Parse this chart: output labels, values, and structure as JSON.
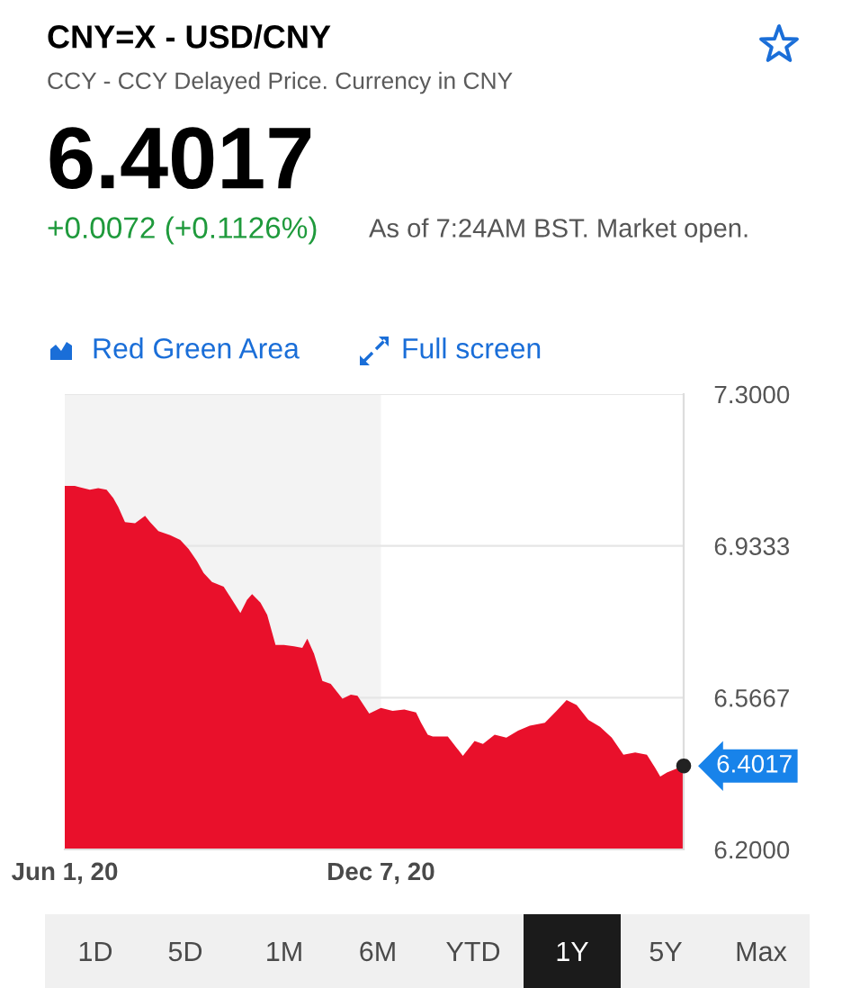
{
  "chart_data": {
    "type": "area",
    "title": "CNY=X - USD/CNY",
    "subtitle": "CCY - CCY Delayed Price. Currency in CNY",
    "x": [
      "2020-06-01",
      "2020-06-07",
      "2020-06-10",
      "2020-06-16",
      "2020-06-21",
      "2020-06-26",
      "2020-06-30",
      "2020-07-03",
      "2020-07-07",
      "2020-07-13",
      "2020-07-19",
      "2020-07-22",
      "2020-07-27",
      "2020-08-03",
      "2020-08-09",
      "2020-08-14",
      "2020-08-19",
      "2020-08-23",
      "2020-08-28",
      "2020-09-04",
      "2020-09-09",
      "2020-09-14",
      "2020-09-18",
      "2020-09-21",
      "2020-09-26",
      "2020-09-30",
      "2020-10-05",
      "2020-10-10",
      "2020-10-16",
      "2020-10-21",
      "2020-10-24",
      "2020-10-28",
      "2020-11-02",
      "2020-11-07",
      "2020-11-14",
      "2020-11-19",
      "2020-11-23",
      "2020-11-30",
      "2020-12-07",
      "2020-12-14",
      "2020-12-21",
      "2020-12-28",
      "2020-12-31",
      "2021-01-04",
      "2021-01-07",
      "2021-01-16",
      "2021-01-25",
      "2021-02-01",
      "2021-02-06",
      "2021-02-13",
      "2021-02-20",
      "2021-02-27",
      "2021-03-06",
      "2021-03-15",
      "2021-03-22",
      "2021-03-28",
      "2021-04-03",
      "2021-04-10",
      "2021-04-17",
      "2021-04-24",
      "2021-05-01",
      "2021-05-08",
      "2021-05-15",
      "2021-05-20",
      "2021-05-23",
      "2021-05-27",
      "2021-06-01",
      "2021-06-06"
    ],
    "values": [
      7.078,
      7.078,
      7.075,
      7.069,
      7.073,
      7.069,
      7.049,
      7.027,
      6.991,
      6.988,
      7.006,
      6.991,
      6.969,
      6.959,
      6.948,
      6.926,
      6.897,
      6.868,
      6.846,
      6.835,
      6.803,
      6.771,
      6.803,
      6.817,
      6.796,
      6.767,
      6.694,
      6.694,
      6.691,
      6.687,
      6.709,
      6.673,
      6.607,
      6.6,
      6.564,
      6.574,
      6.571,
      6.528,
      6.542,
      6.535,
      6.538,
      6.531,
      6.506,
      6.477,
      6.473,
      6.473,
      6.426,
      6.462,
      6.455,
      6.477,
      6.47,
      6.487,
      6.499,
      6.506,
      6.535,
      6.561,
      6.549,
      6.513,
      6.496,
      6.47,
      6.429,
      6.434,
      6.429,
      6.397,
      6.376,
      6.386,
      6.394,
      6.4017
    ],
    "color": "#e9102b",
    "xlim": [
      "2020-06-01",
      "2021-06-06"
    ],
    "xticks": [
      {
        "value": "2020-06-01",
        "label": "Jun 1, 20"
      },
      {
        "value": "2020-12-07",
        "label": "Dec 7, 20"
      }
    ],
    "ylim": [
      6.2,
      7.3
    ],
    "yticks": [
      {
        "value": 7.3,
        "label": "7.3000"
      },
      6.9333,
      6.5667,
      {
        "value": 6.2,
        "label": "6.2000"
      }
    ],
    "grid": "y",
    "bands": [
      {
        "axis": "x",
        "from": "2020-06-01",
        "to": "2020-12-07",
        "color": "#f3f3f3"
      }
    ],
    "annotations": [
      "6.4017",
      "+0.0072 (+0.1126%)",
      "As of 7:24AM BST. Market open.",
      "Red Green Area",
      "Full screen",
      "1D",
      "5D",
      "1M",
      "6M",
      "YTD",
      "1Y",
      "5Y",
      "Max",
      {
        "text": "6.4017",
        "x": "2021-06-06",
        "y": 6.4017
      }
    ]
  }
}
